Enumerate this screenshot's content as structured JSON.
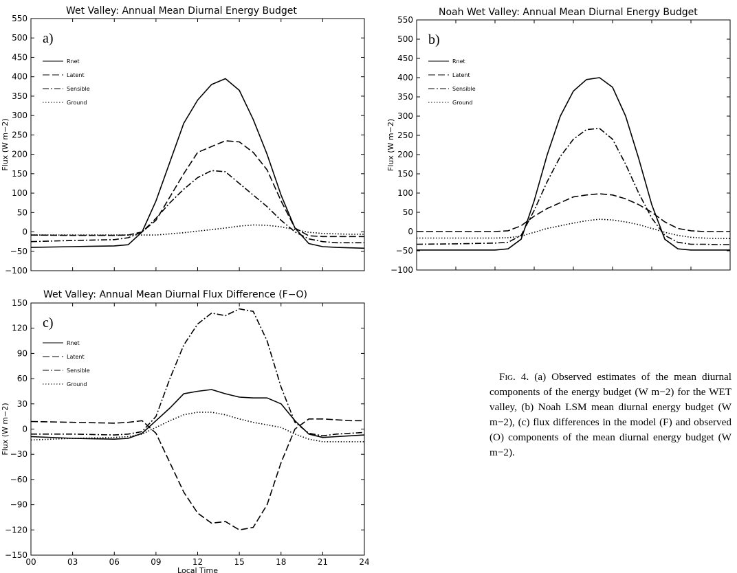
{
  "chart_data": [
    {
      "type": "line",
      "title": "Wet Valley:  Annual Mean Diurnal Energy Budget",
      "panel_label": "a)",
      "xlabel": "",
      "ylabel": "Flux (W m−2)",
      "xlim": [
        0,
        24
      ],
      "ylim": [
        -100,
        550
      ],
      "yticks": [
        -100,
        -50,
        0,
        50,
        100,
        150,
        200,
        250,
        300,
        350,
        400,
        450,
        500,
        550
      ],
      "xtick_count": 8,
      "legend_position": "top-left",
      "series": [
        {
          "name": "Rnet",
          "dash": "solid",
          "x": [
            0,
            3,
            6,
            7,
            8,
            9,
            10,
            11,
            12,
            13,
            14,
            15,
            16,
            17,
            18,
            19,
            20,
            21,
            22,
            23,
            24
          ],
          "y": [
            -40,
            -38,
            -36,
            -33,
            0,
            80,
            180,
            280,
            340,
            380,
            395,
            365,
            290,
            200,
            95,
            10,
            -30,
            -38,
            -40,
            -41,
            -42
          ]
        },
        {
          "name": "Latent",
          "dash": "dash",
          "x": [
            0,
            3,
            6,
            7,
            8,
            9,
            10,
            11,
            12,
            13,
            14,
            15,
            16,
            17,
            18,
            19,
            20,
            21,
            22,
            23,
            24
          ],
          "y": [
            -8,
            -9,
            -9,
            -8,
            0,
            30,
            90,
            150,
            205,
            220,
            235,
            232,
            205,
            160,
            80,
            10,
            -10,
            -12,
            -12,
            -12,
            -12
          ]
        },
        {
          "name": "Sensible",
          "dash": "dashdot",
          "x": [
            0,
            3,
            6,
            7,
            8,
            9,
            10,
            11,
            12,
            13,
            14,
            15,
            16,
            17,
            18,
            19,
            20,
            21,
            22,
            23,
            24
          ],
          "y": [
            -25,
            -22,
            -20,
            -15,
            0,
            35,
            75,
            110,
            140,
            158,
            155,
            125,
            95,
            65,
            30,
            0,
            -18,
            -25,
            -28,
            -28,
            -28
          ]
        },
        {
          "name": "Ground",
          "dash": "dot",
          "x": [
            0,
            3,
            6,
            8,
            9,
            10,
            11,
            12,
            13,
            14,
            15,
            16,
            17,
            18,
            19,
            20,
            21,
            22,
            23,
            24
          ],
          "y": [
            -8,
            -8,
            -8,
            -8,
            -8,
            -5,
            -2,
            2,
            6,
            10,
            15,
            18,
            17,
            13,
            6,
            -1,
            -4,
            -5,
            -6,
            -6
          ]
        }
      ]
    },
    {
      "type": "line",
      "title": "Noah Wet Valley:  Annual Mean Diurnal Energy Budget",
      "panel_label": "b)",
      "xlabel": "",
      "ylabel": "Flux (W m−2)",
      "xlim": [
        0,
        24
      ],
      "ylim": [
        -100,
        550
      ],
      "yticks": [
        -100,
        -50,
        0,
        50,
        100,
        150,
        200,
        250,
        300,
        350,
        400,
        450,
        500,
        550
      ],
      "xtick_count": 8,
      "legend_position": "top-left",
      "series": [
        {
          "name": "Rnet",
          "dash": "solid",
          "x": [
            0,
            3,
            6,
            7,
            8,
            9,
            10,
            11,
            12,
            13,
            14,
            15,
            16,
            17,
            18,
            19,
            20,
            21,
            22,
            23,
            24
          ],
          "y": [
            -48,
            -48,
            -48,
            -45,
            -20,
            80,
            200,
            300,
            365,
            395,
            400,
            375,
            300,
            190,
            70,
            -20,
            -45,
            -48,
            -48,
            -48,
            -48
          ]
        },
        {
          "name": "Latent",
          "dash": "dash",
          "x": [
            0,
            3,
            6,
            7,
            8,
            9,
            10,
            11,
            12,
            13,
            14,
            15,
            16,
            17,
            18,
            19,
            20,
            21,
            22,
            23,
            24
          ],
          "y": [
            0,
            0,
            0,
            2,
            15,
            40,
            60,
            75,
            90,
            95,
            98,
            95,
            85,
            70,
            50,
            25,
            8,
            2,
            0,
            0,
            0
          ]
        },
        {
          "name": "Sensible",
          "dash": "dashdot",
          "x": [
            0,
            3,
            6,
            7,
            8,
            9,
            10,
            11,
            12,
            13,
            14,
            15,
            16,
            17,
            18,
            19,
            20,
            21,
            22,
            23,
            24
          ],
          "y": [
            -33,
            -32,
            -30,
            -28,
            -10,
            55,
            130,
            195,
            240,
            265,
            268,
            240,
            175,
            100,
            35,
            -10,
            -28,
            -33,
            -33,
            -34,
            -34
          ]
        },
        {
          "name": "Ground",
          "dash": "dot",
          "x": [
            0,
            3,
            6,
            7,
            8,
            9,
            10,
            11,
            12,
            13,
            14,
            15,
            16,
            17,
            18,
            19,
            20,
            21,
            22,
            23,
            24
          ],
          "y": [
            -17,
            -17,
            -17,
            -16,
            -12,
            -2,
            8,
            15,
            22,
            28,
            32,
            30,
            25,
            18,
            8,
            -2,
            -10,
            -15,
            -17,
            -18,
            -18
          ]
        }
      ]
    },
    {
      "type": "line",
      "title": "Wet Valley:  Annual Mean Diurnal Flux Difference (F−O)",
      "panel_label": "c)",
      "xlabel": "Local Time",
      "ylabel": "Flux (W m−2)",
      "xlim": [
        0,
        24
      ],
      "ylim": [
        -150,
        150
      ],
      "yticks": [
        -150,
        -120,
        -90,
        -60,
        -30,
        0,
        30,
        60,
        90,
        120,
        150
      ],
      "xticks": [
        "00",
        "03",
        "06",
        "09",
        "12",
        "15",
        "18",
        "21",
        "24"
      ],
      "legend_position": "top-left",
      "series": [
        {
          "name": "Rnet",
          "dash": "solid",
          "x": [
            0,
            3,
            6,
            7,
            8,
            9,
            10,
            11,
            12,
            13,
            14,
            15,
            16,
            17,
            18,
            19,
            20,
            21,
            22,
            23,
            24
          ],
          "y": [
            -9,
            -11,
            -12,
            -11,
            -5,
            10,
            25,
            42,
            45,
            47,
            42,
            38,
            37,
            37,
            30,
            10,
            -6,
            -10,
            -9,
            -8,
            -7
          ]
        },
        {
          "name": "Latent",
          "dash": "dash",
          "x": [
            0,
            3,
            6,
            7,
            8,
            9,
            10,
            11,
            12,
            13,
            14,
            15,
            16,
            17,
            18,
            19,
            20,
            21,
            22,
            23,
            24
          ],
          "y": [
            9,
            8,
            7,
            8,
            10,
            -5,
            -40,
            -75,
            -100,
            -112,
            -110,
            -120,
            -117,
            -90,
            -40,
            0,
            12,
            12,
            11,
            10,
            10
          ]
        },
        {
          "name": "Sensible",
          "dash": "dashdot",
          "x": [
            0,
            3,
            6,
            7,
            8,
            9,
            10,
            11,
            12,
            13,
            14,
            15,
            16,
            17,
            18,
            19,
            20,
            21,
            22,
            23,
            24
          ],
          "y": [
            -6,
            -6,
            -7,
            -6,
            -3,
            15,
            60,
            100,
            125,
            138,
            135,
            143,
            140,
            105,
            50,
            8,
            -5,
            -8,
            -6,
            -5,
            -4
          ]
        },
        {
          "name": "Ground",
          "dash": "dot",
          "x": [
            0,
            3,
            6,
            7,
            8,
            9,
            10,
            11,
            12,
            13,
            14,
            15,
            16,
            17,
            18,
            19,
            20,
            21,
            22,
            23,
            24
          ],
          "y": [
            -13,
            -11,
            -10,
            -9,
            -6,
            2,
            10,
            17,
            20,
            20,
            17,
            12,
            8,
            5,
            2,
            -6,
            -12,
            -15,
            -15,
            -15,
            -15
          ]
        }
      ]
    }
  ],
  "caption": {
    "label": "Fig. 4.",
    "text": "(a) Observed estimates of the mean diurnal components of the energy budget (W m−2) for the WET valley, (b) Noah LSM mean diurnal energy budget (W m−2), (c) flux differences in the model (F) and observed (O) components of the mean diurnal energy budget (W m−2)."
  }
}
